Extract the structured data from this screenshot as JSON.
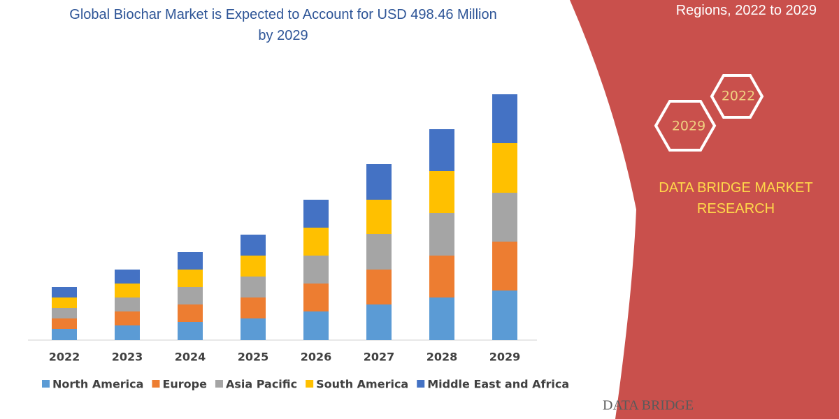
{
  "chart_data": {
    "type": "stacked_bar",
    "title": "Global Biochar Market is Expected to Account for USD 498.46 Million by 2029",
    "subtitle": "Regions, 2022 to 2029",
    "categories": [
      "2022",
      "2023",
      "2024",
      "2025",
      "2026",
      "2027",
      "2028",
      "2029"
    ],
    "series": [
      {
        "name": "North America",
        "color": "#5b9bd5",
        "values": [
          16,
          21,
          26,
          31,
          41,
          51,
          61,
          71
        ]
      },
      {
        "name": "Europe",
        "color": "#ed7d31",
        "values": [
          15,
          20,
          25,
          30,
          40,
          50,
          60,
          70
        ]
      },
      {
        "name": "Asia Pacific",
        "color": "#a5a5a5",
        "values": [
          15,
          20,
          25,
          30,
          40,
          51,
          61,
          70
        ]
      },
      {
        "name": "South America",
        "color": "#ffc000",
        "values": [
          15,
          20,
          25,
          30,
          40,
          49,
          60,
          71
        ]
      },
      {
        "name": "Middle East and Africa",
        "color": "#4472c4",
        "values": [
          15,
          20,
          25,
          30,
          40,
          51,
          60,
          70
        ]
      }
    ],
    "ylim": [
      0,
      352
    ],
    "annotations": {
      "hex_start": "2022",
      "hex_end": "2029",
      "brand": "DATA BRIDGE MARKET RESEARCH",
      "logo": "DATA BRIDGE"
    }
  }
}
